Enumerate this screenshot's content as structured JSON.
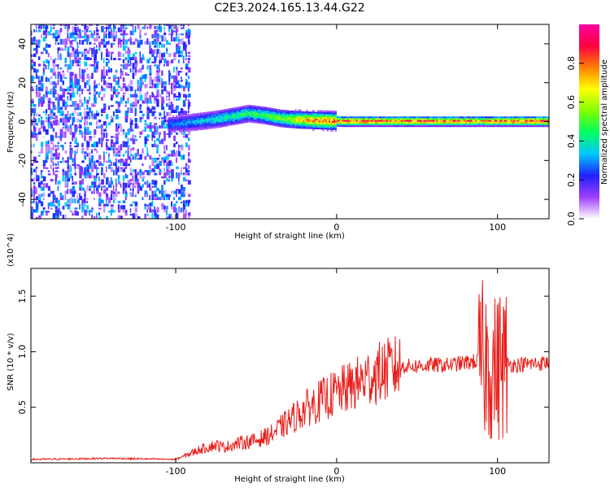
{
  "title": "C2E3.2024.165.13.44.G22",
  "chart_data": [
    {
      "type": "heatmap",
      "xlabel": "Height of straight line (km)",
      "ylabel": "Frequency (Hz)",
      "xlim": [
        -190,
        132
      ],
      "ylim": [
        -50,
        50
      ],
      "xticks": [
        -100,
        0,
        100
      ],
      "yticks": [
        -40,
        -20,
        0,
        20,
        40
      ],
      "colorbar": {
        "label": "Normalized spectral amplitude",
        "ticks": [
          "0.0",
          "0.2",
          "0.4",
          "0.6",
          "0.8"
        ],
        "range": [
          0,
          1
        ],
        "colors": [
          "#ffffff",
          "#9e3fff",
          "#2020ff",
          "#00c8ff",
          "#00ff60",
          "#80ff00",
          "#ffff00",
          "#ff8000",
          "#ff0040",
          "#ff00a0"
        ]
      },
      "ridge": {
        "x": [
          -105,
          -95,
          -85,
          -75,
          -65,
          -55,
          -45,
          -35,
          -25,
          -15,
          -5,
          5,
          30,
          60,
          80,
          90,
          100,
          110,
          132
        ],
        "y": [
          -1.5,
          -1,
          0,
          1,
          2.5,
          4,
          3,
          1.5,
          0.8,
          0.5,
          0.2,
          0,
          0,
          0,
          0,
          0,
          0,
          0,
          0
        ],
        "amplitude": [
          0.3,
          0.35,
          0.4,
          0.45,
          0.5,
          0.5,
          0.55,
          0.6,
          0.75,
          0.85,
          0.9,
          0.95,
          0.95,
          0.95,
          0.9,
          0.85,
          0.9,
          0.95,
          0.95
        ]
      },
      "noise_region": {
        "x": [
          -190,
          -92
        ],
        "amplitude": [
          0.05,
          0.35
        ]
      }
    },
    {
      "type": "line",
      "xlabel": "Height of straight line (km)",
      "ylabel": "SNR (10 * v/v)",
      "exponent_label": "(x10^4)",
      "xlim": [
        -190,
        132
      ],
      "ylim": [
        0,
        17500
      ],
      "xticks": [
        -100,
        0,
        100
      ],
      "yticks": [
        "0.5",
        "1.0",
        "1.5"
      ],
      "series": [
        {
          "color": "#e8201c",
          "x": [
            -190,
            -140,
            -100,
            -90,
            -85,
            -75,
            -70,
            -60,
            -50,
            -40,
            -30,
            -20,
            -10,
            0,
            10,
            20,
            30,
            40,
            50,
            60,
            70,
            80,
            90,
            95,
            98,
            100,
            102,
            105,
            110,
            120,
            132
          ],
          "values": [
            300,
            400,
            300,
            900,
            1200,
            1600,
            1400,
            1800,
            2000,
            2600,
            3700,
            4800,
            5600,
            6300,
            6900,
            7700,
            8300,
            8700,
            8700,
            8800,
            8800,
            9000,
            9200,
            9000,
            8500,
            8500,
            9000,
            9000,
            8800,
            8900,
            9000
          ]
        }
      ]
    }
  ]
}
